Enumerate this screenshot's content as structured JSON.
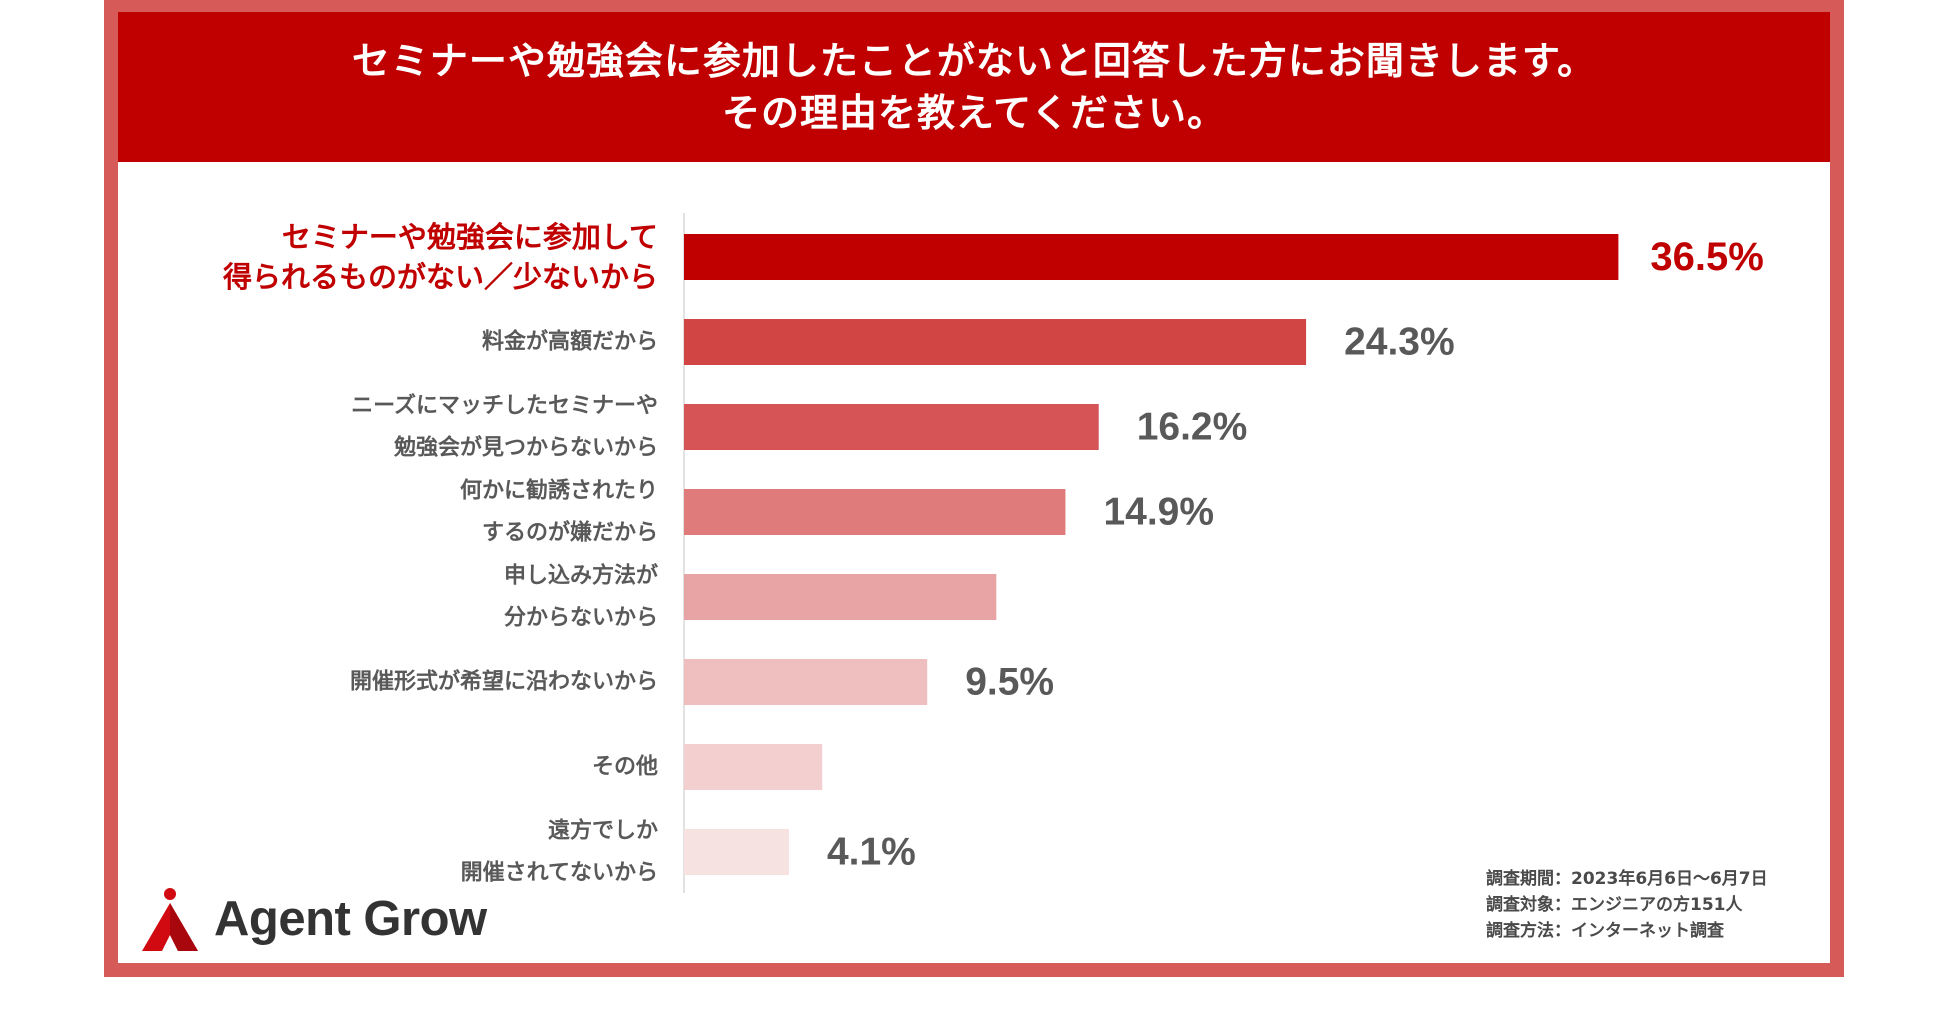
{
  "header": {
    "line1": "セミナーや勉強会に参加したことがないと回答した方にお聞きします。",
    "line2": "その理由を教えてください。"
  },
  "chart_data": {
    "type": "bar",
    "orientation": "horizontal",
    "title": "セミナーや勉強会に参加したことがないと回答した方にお聞きします。その理由を教えてください。",
    "categories": [
      [
        "セミナーや勉強会に参加して",
        "得られるものがない／少ないから"
      ],
      [
        "料金が高額だから"
      ],
      [
        "ニーズにマッチしたセミナーや",
        "勉強会が見つからないから"
      ],
      [
        "何かに勧誘されたり",
        "するのが嫌だから"
      ],
      [
        "申し込み方法が",
        "分からないから"
      ],
      [
        "開催形式が希望に沿わないから"
      ],
      [
        "その他"
      ],
      [
        "遠方でしか",
        "開催されてないから"
      ]
    ],
    "values": [
      36.5,
      24.3,
      16.2,
      14.9,
      12.2,
      9.5,
      5.4,
      4.1
    ],
    "data_labels": [
      "36.5%",
      "24.3%",
      "16.2%",
      "14.9%",
      "",
      "9.5%",
      "",
      "4.1%"
    ],
    "bar_colors": [
      "#c00000",
      "#d24545",
      "#d65456",
      "#e07b7b",
      "#e8a4a4",
      "#efbfbf",
      "#f3cfcf",
      "#f7e2e2"
    ],
    "highlight_color": "#c00000",
    "grid": false,
    "legend": "none"
  },
  "survey": {
    "period": "調査期間：2023年6月6日～6月7日",
    "target": "調査対象：エンジニアの方151人",
    "method": "調査方法：インターネット調査"
  },
  "logo": {
    "text": "Agent Grow",
    "icon": "agent-grow-logo-icon"
  }
}
